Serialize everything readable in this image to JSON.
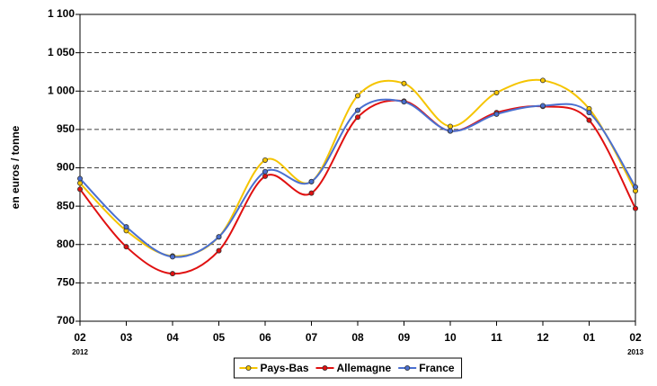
{
  "chart_data": {
    "type": "line",
    "y_label": "en euros / tonne",
    "categories": [
      "02",
      "03",
      "04",
      "05",
      "06",
      "07",
      "08",
      "09",
      "10",
      "11",
      "12",
      "01",
      "02"
    ],
    "category_years": [
      "2012",
      null,
      null,
      null,
      null,
      null,
      null,
      null,
      null,
      null,
      null,
      null,
      "2013"
    ],
    "series": [
      {
        "name": "Pays-Bas",
        "color": "#f5c400",
        "values": [
          880,
          818,
          785,
          810,
          910,
          882,
          994,
          1010,
          954,
          998,
          1014,
          977,
          870
        ]
      },
      {
        "name": "Allemagne",
        "color": "#e01010",
        "values": [
          872,
          797,
          762,
          792,
          889,
          867,
          966,
          987,
          948,
          972,
          980,
          962,
          847
        ]
      },
      {
        "name": "France",
        "color": "#4a6fd0",
        "values": [
          886,
          823,
          784,
          810,
          895,
          882,
          975,
          986,
          948,
          970,
          981,
          972,
          875
        ]
      }
    ],
    "ylim": [
      700,
      1100
    ],
    "yticks": [
      700,
      750,
      800,
      850,
      900,
      950,
      {
        "value": 1000,
        "label": "1 000"
      },
      {
        "value": 1050,
        "label": "1 050"
      },
      {
        "value": 1100,
        "label": "1 100"
      }
    ],
    "grid": true,
    "legend": "bottom"
  }
}
